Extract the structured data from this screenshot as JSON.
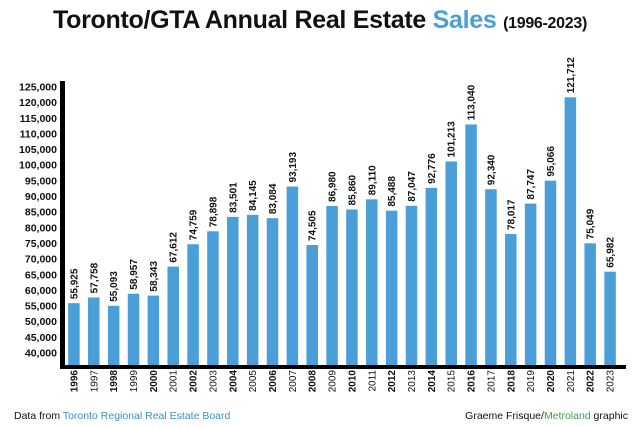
{
  "title": {
    "prefix": "Toronto/GTA Annual Real Estate ",
    "highlight": "Sales",
    "years": "(1996-2023)"
  },
  "footer": {
    "source_prefix": "Data from ",
    "source_link": "Toronto Regional Real Estate Board",
    "credit_prefix": "Graeme Frisque/",
    "credit_highlight": "Metroland",
    "credit_suffix": " graphic"
  },
  "colors": {
    "bar": "#4a9fd8",
    "axis": "#000000",
    "text": "#111111",
    "title_highlight": "#4a9fd8",
    "credit_highlight": "#3ca24e"
  },
  "chart_data": {
    "type": "bar",
    "title": "Toronto/GTA Annual Real Estate Sales (1996-2023)",
    "xlabel": "",
    "ylabel": "",
    "ylim": [
      40000,
      125000
    ],
    "grid": false,
    "yticks": [
      40000,
      45000,
      50000,
      55000,
      60000,
      65000,
      70000,
      75000,
      80000,
      85000,
      90000,
      95000,
      100000,
      105000,
      110000,
      115000,
      120000,
      125000
    ],
    "ytick_labels": [
      "40,000",
      "45,000",
      "50,000",
      "55,000",
      "60,000",
      "65,000",
      "70,000",
      "75,000",
      "80,000",
      "85,000",
      "90,000",
      "95,000",
      "100,000",
      "105,000",
      "110,000",
      "115,000",
      "120,000",
      "125,000"
    ],
    "categories": [
      "1996",
      "1997",
      "1998",
      "1999",
      "2000",
      "2001",
      "2002",
      "2003",
      "2004",
      "2005",
      "2006",
      "2007",
      "2008",
      "2009",
      "2010",
      "2011",
      "2012",
      "2013",
      "2014",
      "2015",
      "2016",
      "2017",
      "2018",
      "2019",
      "2020",
      "2021",
      "2022",
      "2023"
    ],
    "bold_categories": [
      "1996",
      "1998",
      "2000",
      "2002",
      "2004",
      "2006",
      "2008",
      "2010",
      "2012",
      "2014",
      "2016",
      "2018",
      "2020",
      "2022"
    ],
    "values": [
      55925,
      57758,
      55093,
      58957,
      58343,
      67612,
      74759,
      78898,
      83501,
      84145,
      83084,
      93193,
      74505,
      86980,
      85860,
      89110,
      85488,
      87047,
      92776,
      101213,
      113040,
      92340,
      78017,
      87747,
      95066,
      121712,
      75049,
      65982
    ],
    "value_labels": [
      "55,925",
      "57,758",
      "55,093",
      "58,957",
      "58,343",
      "67,612",
      "74,759",
      "78,898",
      "83,501",
      "84,145",
      "83,084",
      "93,193",
      "74,505",
      "86,980",
      "85,860",
      "89,110",
      "85,488",
      "87,047",
      "92,776",
      "101,213",
      "113,040",
      "92,340",
      "78,017",
      "87,747",
      "95,066",
      "121,712",
      "75,049",
      "65,982"
    ]
  }
}
